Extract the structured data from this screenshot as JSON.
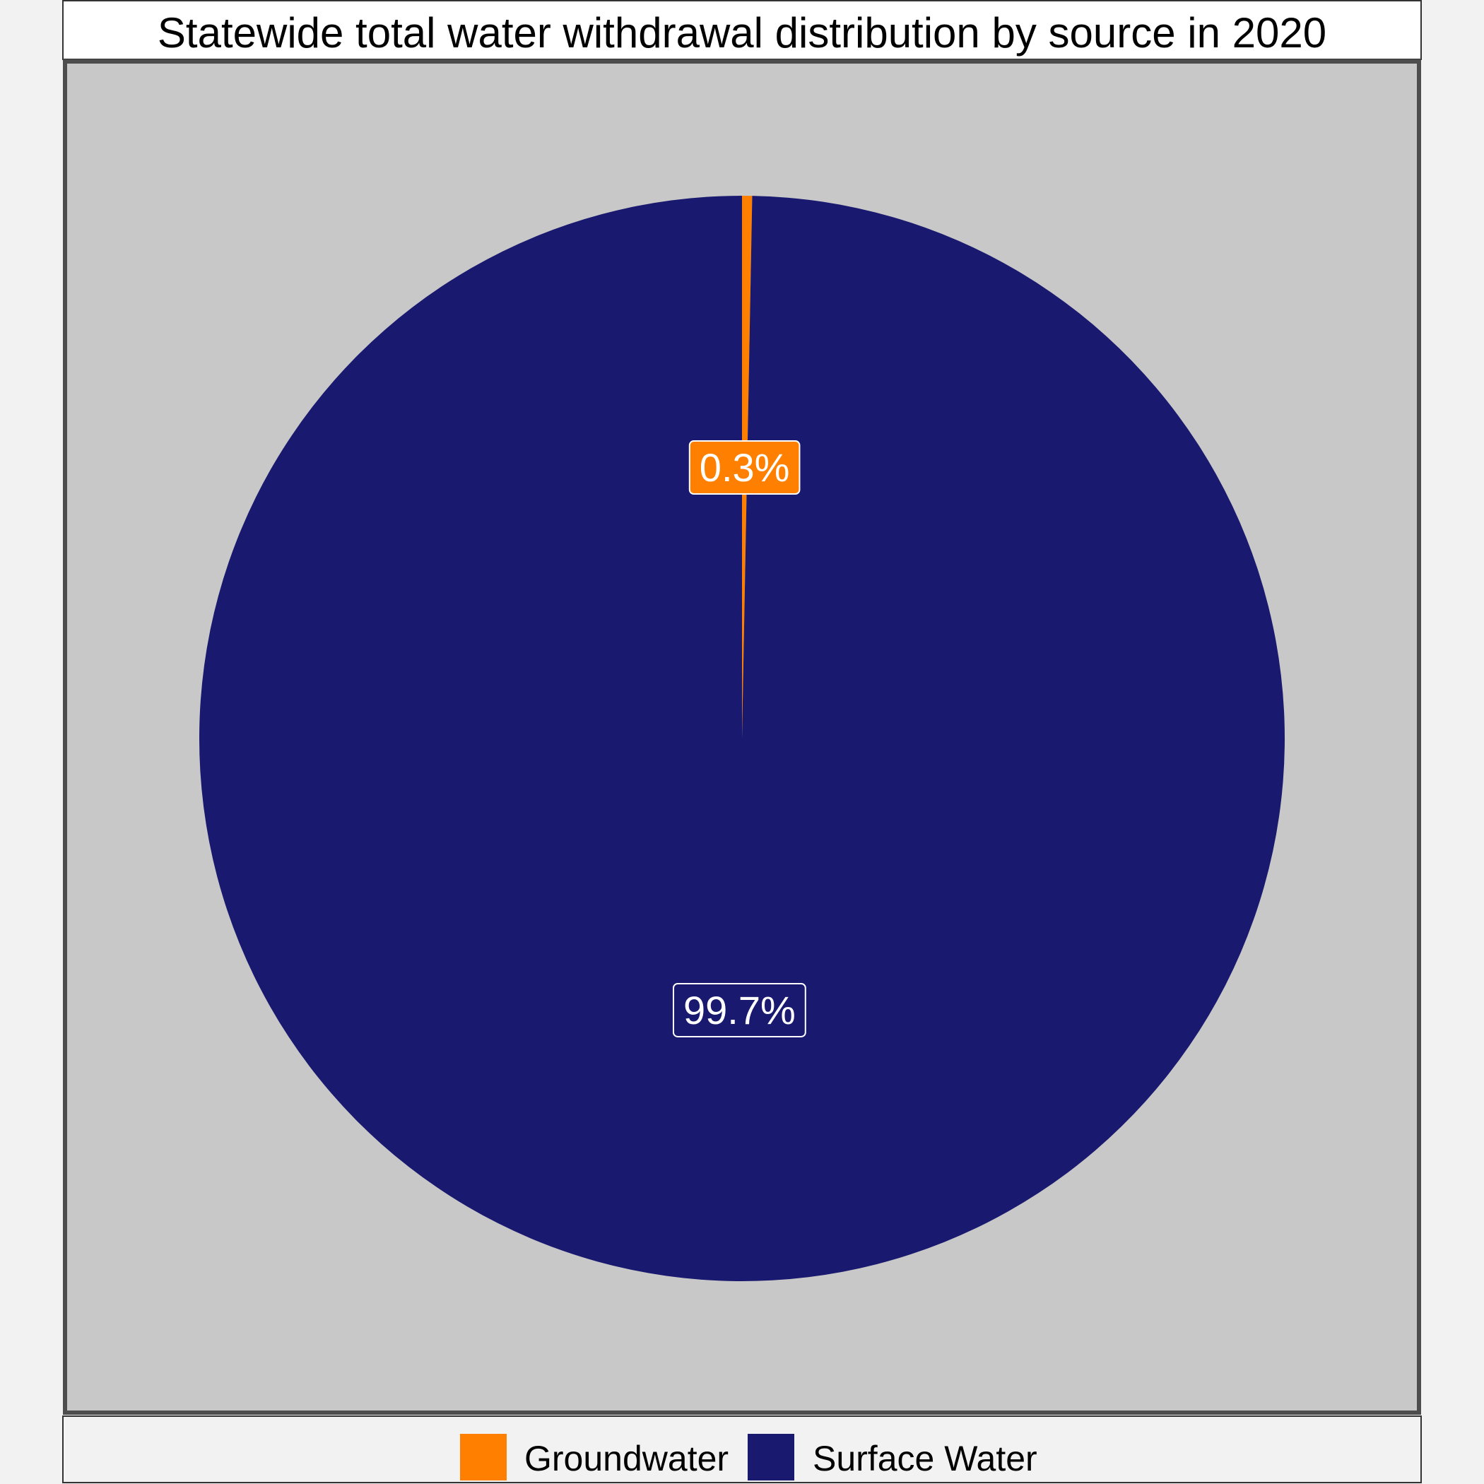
{
  "chart_data": {
    "type": "pie",
    "title": "Statewide total water withdrawal distribution by source in 2020",
    "categories": [
      "Groundwater",
      "Surface Water"
    ],
    "values": [
      0.3,
      99.7
    ],
    "labels": [
      "0.3%",
      "99.7%"
    ],
    "colors": [
      "#ff7f00",
      "#191970"
    ],
    "legend": {
      "position": "bottom",
      "entries": [
        "Groundwater",
        "Surface Water"
      ]
    }
  },
  "colors": {
    "page_background": "#f2f2f2",
    "panel_background": "#c8c8c8",
    "panel_border": "#4d4d4d"
  }
}
